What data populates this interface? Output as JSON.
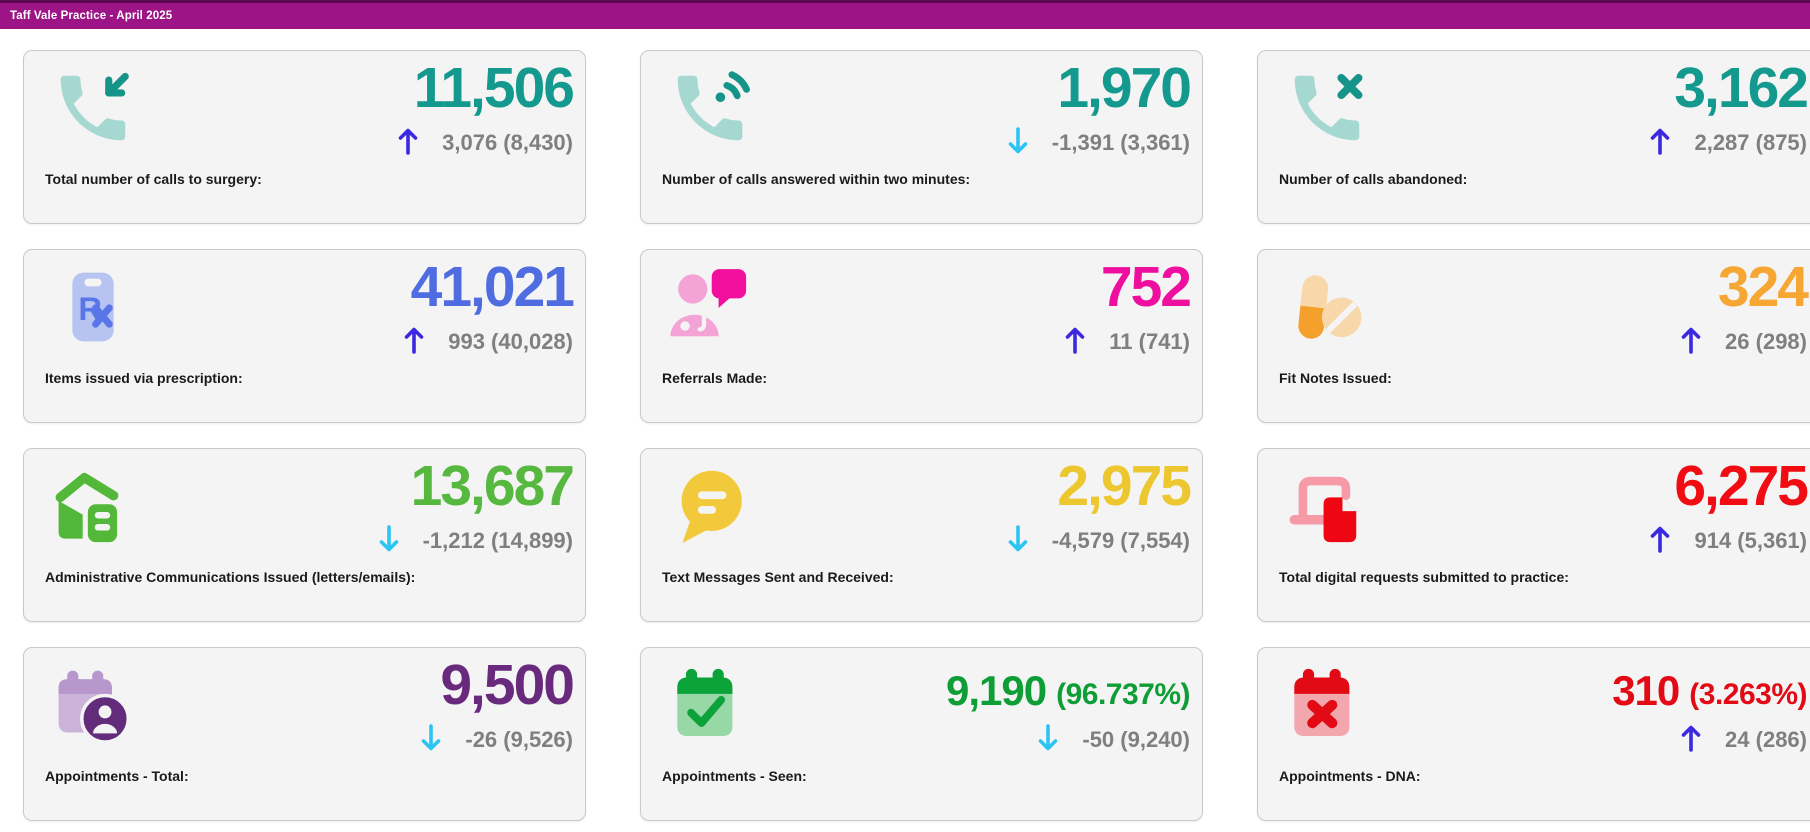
{
  "header": {
    "title": "Taff Vale Practice - April 2025",
    "bar_color": "#9c1486",
    "bar_top_edge_color": "#59094e"
  },
  "trend": {
    "up_arrow_color": "#3b28e0",
    "down_arrow_color": "#2cc5f2",
    "change_text_color": "#7f7f7f"
  },
  "cards": [
    {
      "id": "calls-total",
      "icon": "phone-incoming",
      "label": "Total number of calls to surgery:",
      "value": "11,506",
      "value_color": "#13998d",
      "trend": "up",
      "change": "3,076 (8,430)"
    },
    {
      "id": "calls-answered-two-minutes",
      "icon": "phone-volume",
      "label": "Number of calls answered within two minutes:",
      "value": "1,970",
      "value_color": "#13998d",
      "trend": "down",
      "change": "-1,391 (3,361)"
    },
    {
      "id": "calls-abandoned",
      "icon": "phone-x",
      "label": "Number of calls abandoned:",
      "value": "3,162",
      "value_color": "#13998d",
      "trend": "up",
      "change": "2,287 (875)"
    },
    {
      "id": "prescription-items",
      "icon": "prescription",
      "label": "Items issued via prescription:",
      "value": "41,021",
      "value_color": "#4f6ce0",
      "trend": "up",
      "change": "993 (40,028)"
    },
    {
      "id": "referrals-made",
      "icon": "doctor-chat",
      "label": "Referrals Made:",
      "value": "752",
      "value_color": "#ef0f9f",
      "trend": "up",
      "change": "11 (741)"
    },
    {
      "id": "fit-notes-issued",
      "icon": "pills",
      "label": "Fit Notes Issued:",
      "value": "324",
      "value_color": "#f6a733",
      "trend": "up",
      "change": "26 (298)"
    },
    {
      "id": "admin-communications",
      "icon": "mail-archive",
      "label": "Administrative Communications Issued (letters/emails):",
      "value": "13,687",
      "value_color": "#56b83e",
      "trend": "down",
      "change": "-1,212 (14,899)"
    },
    {
      "id": "text-messages",
      "icon": "chat-bubble",
      "label": "Text Messages Sent and Received:",
      "value": "2,975",
      "value_color": "#edc72f",
      "trend": "down",
      "change": "-4,579 (7,554)"
    },
    {
      "id": "digital-requests",
      "icon": "laptop-document",
      "label": "Total digital requests submitted to practice:",
      "value": "6,275",
      "value_color": "#f10b12",
      "trend": "up",
      "change": "914 (5,361)"
    },
    {
      "id": "appointments-total",
      "icon": "calendar-user",
      "label": "Appointments - Total:",
      "value": "9,500",
      "value_color": "#69297d",
      "trend": "down",
      "change": "-26 (9,526)"
    },
    {
      "id": "appointments-seen",
      "icon": "calendar-check",
      "label": "Appointments - Seen:",
      "value": "9,190",
      "value_percent": "(96.737%)",
      "value_color": "#0f9e36",
      "trend": "down",
      "change": "-50 (9,240)"
    },
    {
      "id": "appointments-dna",
      "icon": "calendar-x",
      "label": "Appointments - DNA:",
      "value": "310",
      "value_percent": "(3.263%)",
      "value_color": "#e20a14",
      "trend": "up",
      "change": "24 (286)"
    }
  ]
}
